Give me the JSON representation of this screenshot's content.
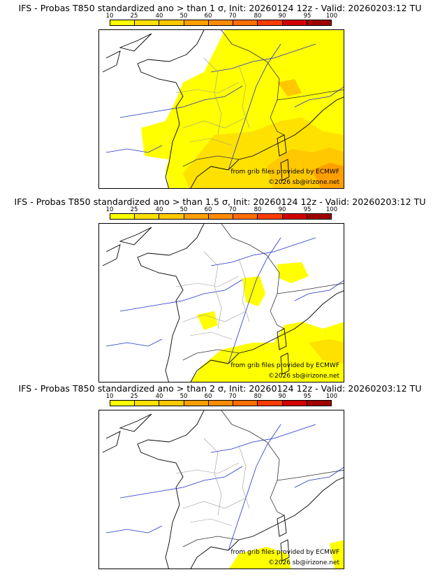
{
  "colorbar": {
    "ticks": [
      "10",
      "25",
      "40",
      "50",
      "60",
      "70",
      "80",
      "90",
      "95",
      "100"
    ],
    "colors": [
      "#ffff00",
      "#ffe100",
      "#ffc800",
      "#ffa000",
      "#ff8c00",
      "#ff6e00",
      "#ff3c00",
      "#d20000",
      "#a00000",
      "#640000"
    ]
  },
  "credits": {
    "source": "from grib files provided by ECMWF",
    "copyright": "©2026 sb@irizone.net"
  },
  "panels": [
    {
      "title": "IFS - Probas T850  standardized ano > than 1 σ, Init: 20260124 12z - Valid: 20260203:12 TU"
    },
    {
      "title": "IFS - Probas T850  standardized ano > than 1.5 σ, Init: 20260124 12z - Valid: 20260203:12 TU"
    },
    {
      "title": "IFS - Probas T850  standardized ano > than 2 σ, Init: 20260124 12z - Valid: 20260203:12 TU"
    }
  ]
}
